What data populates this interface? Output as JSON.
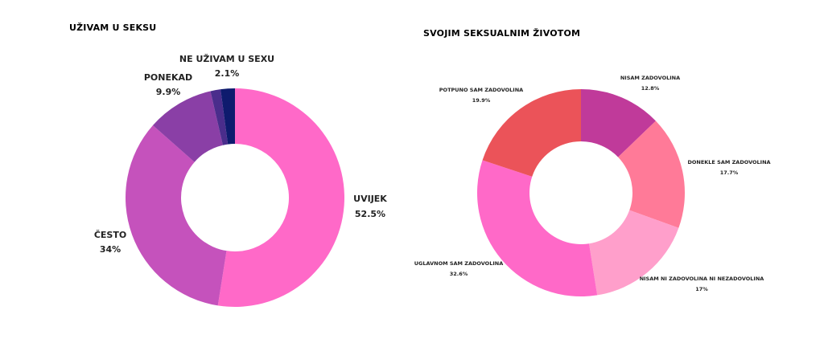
{
  "chart_data": [
    {
      "type": "pie",
      "title": "UŽIVAM U SEKSU",
      "categories": [
        "UVIJEK",
        "ČESTO",
        "PONEKAD",
        "",
        "NE UŽIVAM U SEXU"
      ],
      "values": [
        52.5,
        34,
        9.9,
        1.5,
        2.1
      ],
      "value_labels": [
        "52.5%",
        "34%",
        "9.9%",
        "",
        "2.1%"
      ],
      "colors": [
        "#ff69c8",
        "#c552bc",
        "#8a3fa6",
        "#4a2d8c",
        "#0e1b6e"
      ],
      "hole": "donut"
    },
    {
      "type": "pie",
      "title": "SVOJIM SEKSUALNIM ŽIVOTOM",
      "categories": [
        "NISAM ZADOVOLINA",
        "DONEKLE SAM ZADOVOLINA",
        "NISAM NI ZADOVOLINA NI NEZADOVOLINA",
        "UGLAVNOM SAM ZADOVOLINA",
        "POTPUNO SAM ZADOVOLINA"
      ],
      "values": [
        12.8,
        17.7,
        17,
        32.6,
        19.9
      ],
      "value_labels": [
        "12.8%",
        "17.7%",
        "17%",
        "32.6%",
        "19.9%"
      ],
      "colors": [
        "#c03a9a",
        "#ff7a98",
        "#ff9fcb",
        "#ff69c8",
        "#eb5359"
      ],
      "hole": "donut"
    }
  ]
}
